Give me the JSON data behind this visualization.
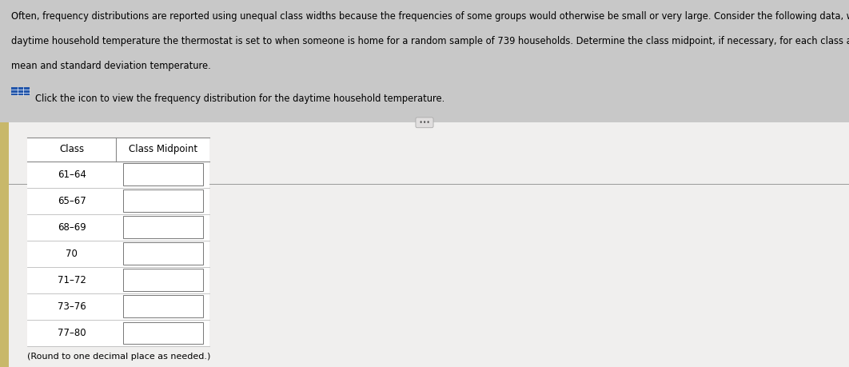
{
  "line1": "Often, frequency distributions are reported using unequal class widths because the frequencies of some groups would otherwise be small or very large. Consider the following data, which represent the",
  "line2": "daytime household temperature the thermostat is set to when someone is home for a random sample of 739 households. Determine the class midpoint, if necessary, for each class and approximate the",
  "line3": "mean and standard deviation temperature.",
  "subtitle_text": "Click the icon to view the frequency distribution for the daytime household temperature.",
  "classes": [
    "61–64",
    "65–67",
    "68–69",
    "70",
    "71–72",
    "73–76",
    "77–80"
  ],
  "col_headers": [
    "Class",
    "Class Midpoint"
  ],
  "footer_text": "(Round to one decimal place as needed.)",
  "bg_color": "#c8c8c8",
  "white_panel_color": "#f0efee",
  "title_fontsize": 8.3,
  "subtitle_fontsize": 8.3,
  "table_fontsize": 8.5,
  "icon_color": "#2255aa",
  "left_bar_color": "#c8b86a",
  "divider_color": "#999999",
  "dots_button_color": "#e0dede",
  "dots_border_color": "#aaaaaa"
}
